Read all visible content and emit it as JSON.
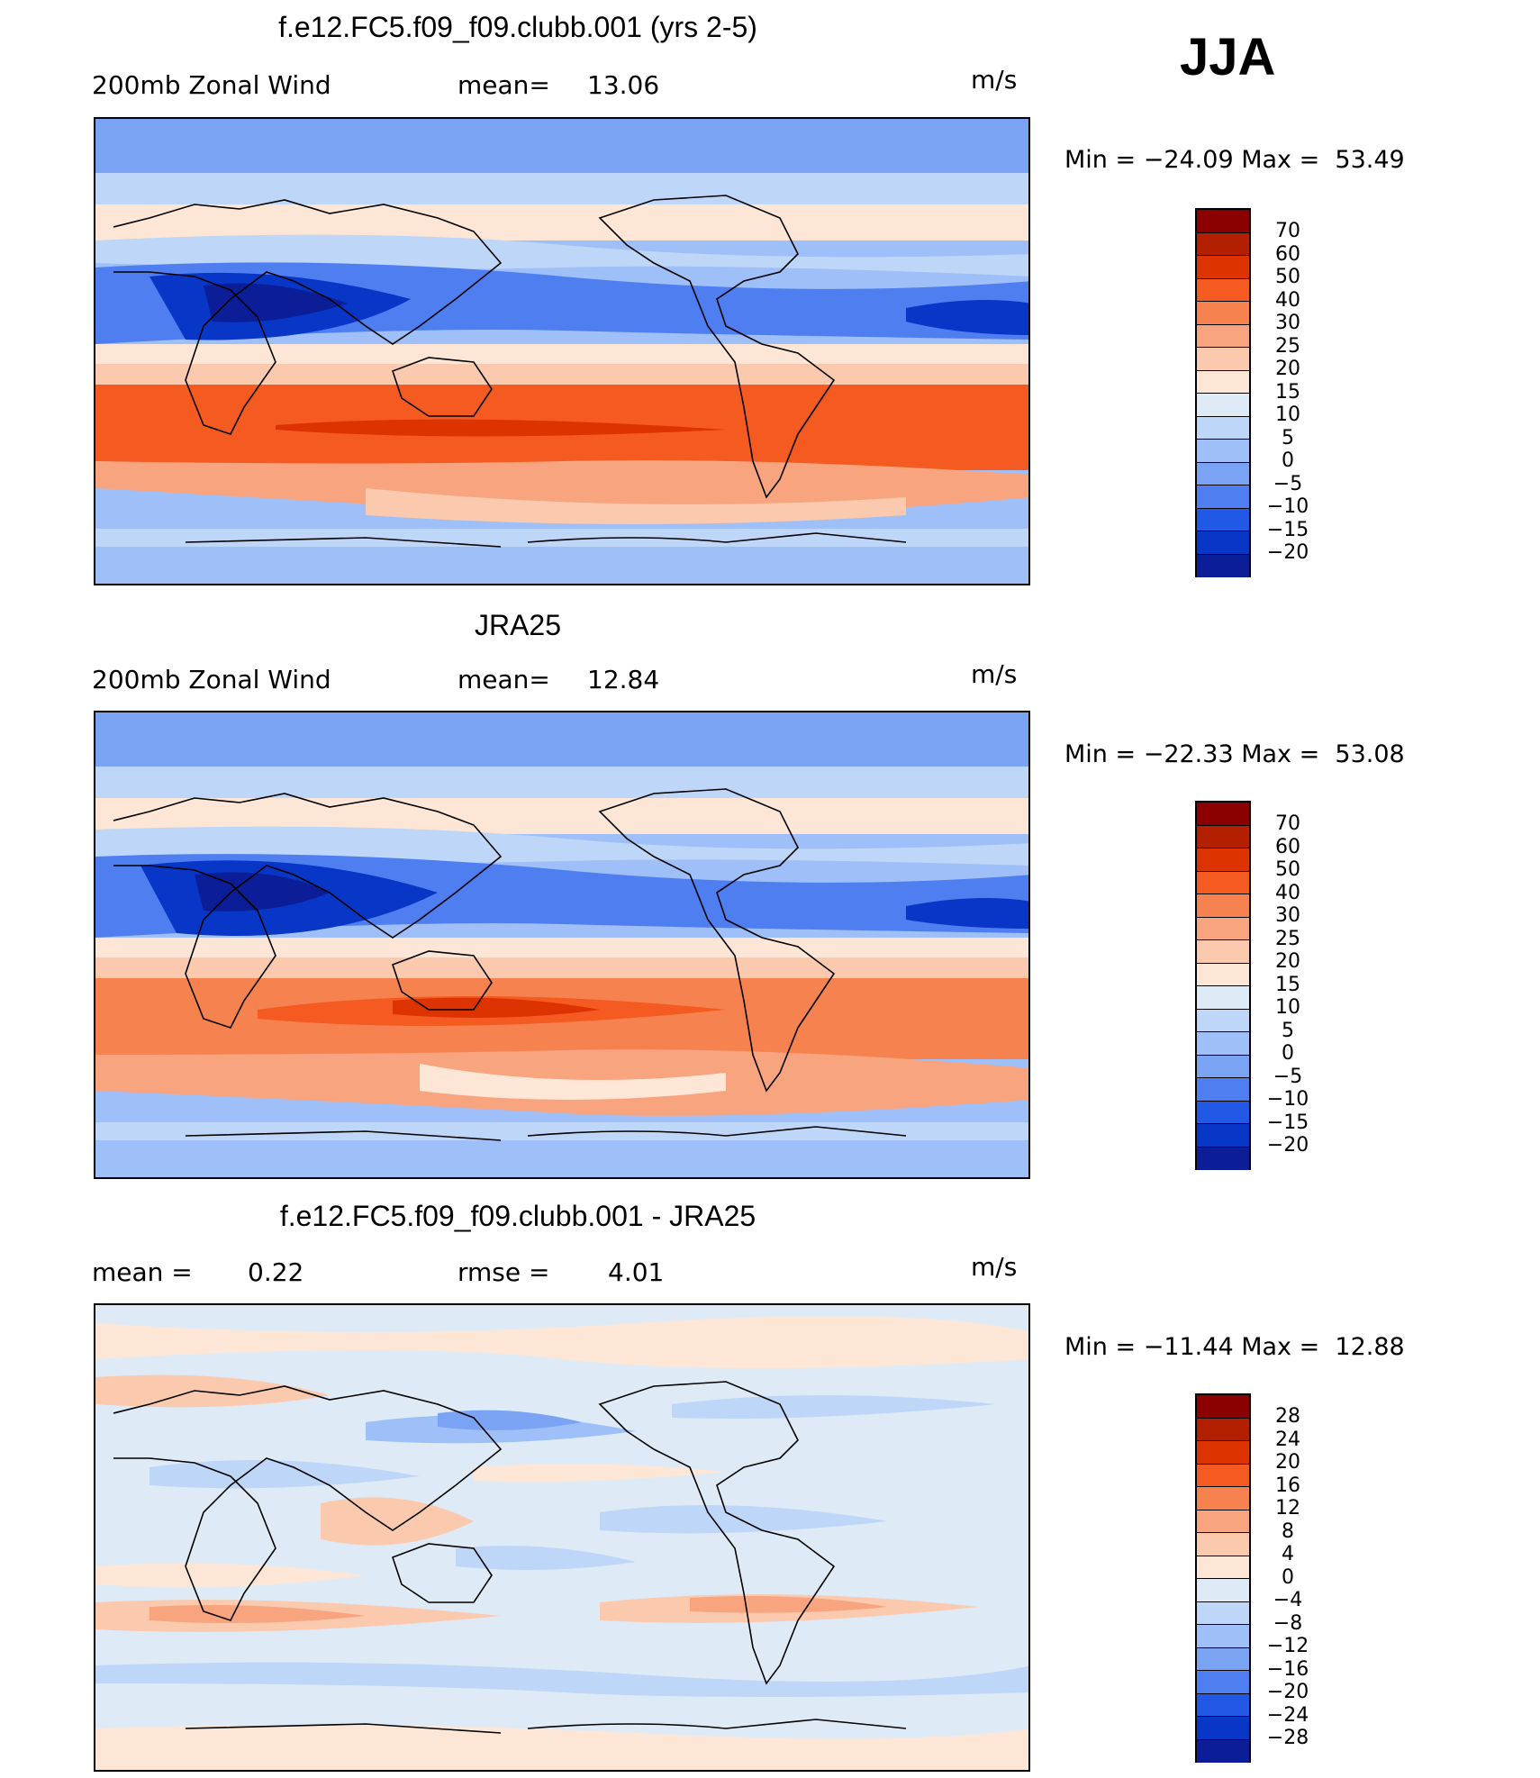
{
  "season": "JJA",
  "unit": "m/s",
  "panels": [
    {
      "title": "f.e12.FC5.f09_f09.clubb.001 (yrs 2-5)",
      "left_label": "200mb Zonal Wind",
      "stat_label": "mean=",
      "stat_value": "13.06",
      "minmax": "Min = −24.09 Max =  53.49",
      "colorbar_ticks": [
        "70",
        "60",
        "50",
        "40",
        "30",
        "25",
        "20",
        "15",
        "10",
        "5",
        "0",
        "−5",
        "−10",
        "−15",
        "−20"
      ]
    },
    {
      "title": "JRA25",
      "left_label": "200mb Zonal Wind",
      "stat_label": "mean=",
      "stat_value": "12.84",
      "minmax": "Min = −22.33 Max =  53.08",
      "colorbar_ticks": [
        "70",
        "60",
        "50",
        "40",
        "30",
        "25",
        "20",
        "15",
        "10",
        "5",
        "0",
        "−5",
        "−10",
        "−15",
        "−20"
      ]
    },
    {
      "title": "f.e12.FC5.f09_f09.clubb.001 - JRA25",
      "left_label": "mean =",
      "left_value": "0.22",
      "stat_label": "rmse =",
      "stat_value": "4.01",
      "minmax": "Min = −11.44 Max =  12.88",
      "colorbar_ticks": [
        "28",
        "24",
        "20",
        "16",
        "12",
        "8",
        "4",
        "0",
        "−4",
        "−8",
        "−12",
        "−16",
        "−20",
        "−24",
        "−28"
      ]
    }
  ],
  "colors": {
    "abs_scale": [
      "#8b0000",
      "#b22000",
      "#dd3300",
      "#f55a20",
      "#f5824f",
      "#f7a47f",
      "#fbc9ae",
      "#fde6d5",
      "#deebf7",
      "#bed6f7",
      "#9ebff7",
      "#7aa4f3",
      "#4f7ef0",
      "#2158e6",
      "#0836c6",
      "#0b1e97",
      "#00137a"
    ],
    "diff_scale": [
      "#8b0000",
      "#b22000",
      "#dd3300",
      "#f55a20",
      "#f5824f",
      "#f7a47f",
      "#fbc9ae",
      "#fde6d5",
      "#deebf7",
      "#bed6f7",
      "#9ebff7",
      "#7aa4f3",
      "#4f7ef0",
      "#2158e6",
      "#0836c6",
      "#0b1e97",
      "#00137a"
    ]
  }
}
